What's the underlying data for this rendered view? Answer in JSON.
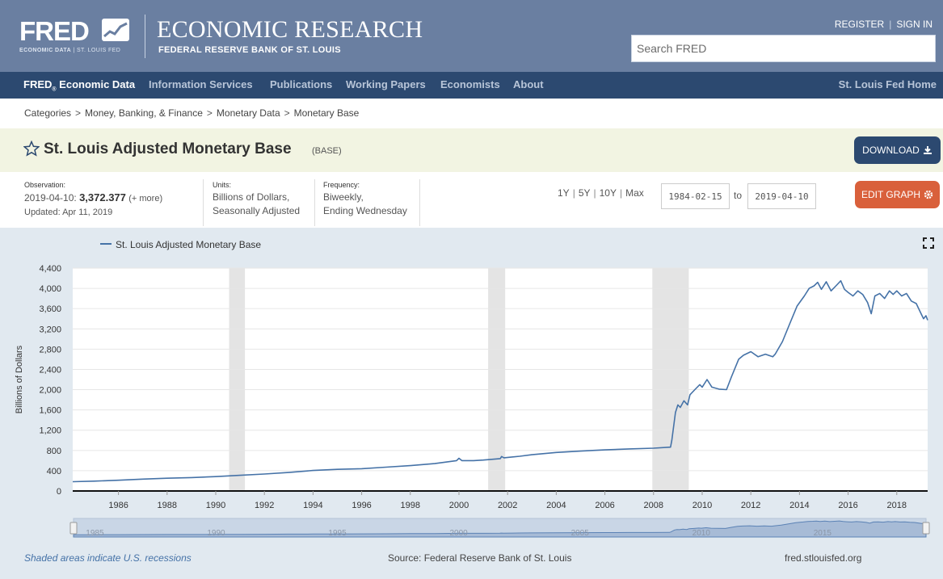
{
  "header": {
    "logo_text": "FRED",
    "logo_sub_bold": "ECONOMIC DATA",
    "logo_sub_sep": " | ",
    "logo_sub_rest": "ST. LOUIS FED",
    "title": "ECONOMIC RESEARCH",
    "subtitle": "FEDERAL RESERVE BANK OF ST. LOUIS",
    "register": "REGISTER",
    "sep": "|",
    "sign_in": "SIGN IN",
    "search_placeholder": "Search FRED"
  },
  "nav": {
    "fred_label": "FRED",
    "fred_sup": "®",
    "fred_rest": " Economic Data",
    "items": [
      "Information Services",
      "Publications",
      "Working Papers",
      "Economists",
      "About"
    ],
    "right": "St. Louis Fed Home"
  },
  "breadcrumb": {
    "items": [
      "Categories",
      "Money, Banking, & Finance",
      "Monetary Data",
      "Monetary Base"
    ],
    "sep": ">"
  },
  "series": {
    "title": "St. Louis Adjusted Monetary Base",
    "id": "(BASE)"
  },
  "buttons": {
    "download": "DOWNLOAD",
    "edit_graph": "EDIT GRAPH"
  },
  "meta": {
    "observation_label": "Observation:",
    "observation_date": "2019-04-10:",
    "observation_value": "3,372.377",
    "observation_more": "(+ more)",
    "updated": "Updated: Apr 11, 2019",
    "units_label": "Units:",
    "units_line1": "Billions of Dollars,",
    "units_line2": "Seasonally Adjusted",
    "frequency_label": "Frequency:",
    "frequency_line1": "Biweekly,",
    "frequency_line2": "Ending Wednesday"
  },
  "range": {
    "options": [
      "1Y",
      "5Y",
      "10Y",
      "Max"
    ],
    "sep": "|",
    "start": "1984-02-15",
    "to": "to",
    "end": "2019-04-10"
  },
  "footer": {
    "recessions": "Shaded areas indicate U.S. recessions",
    "source": "Source: Federal Reserve Bank of St. Louis",
    "url": "fred.stlouisfed.org"
  },
  "colors": {
    "header_bg": "#6a7fa1",
    "nav_bg": "#2c4970",
    "title_band": "#f2f4e2",
    "download_btn": "#2c4970",
    "edit_btn": "#d9603b",
    "series_line": "#4572a7",
    "chart_area_bg": "#e1e9f0",
    "recession_shade": "#e4e4e4"
  },
  "icons": {
    "star": "star-icon",
    "download": "download-icon",
    "gear": "gear-icon",
    "fullscreen": "fullscreen-icon",
    "logo_graph": "logo-graph-icon"
  },
  "chart_data": {
    "type": "line",
    "legend": "St. Louis Adjusted Monetary Base",
    "ylabel": "Billions of Dollars",
    "xlabel": "",
    "ylim": [
      0,
      4400
    ],
    "xlim": [
      1984.12,
      2019.27
    ],
    "y_ticks": [
      0,
      400,
      800,
      1200,
      1600,
      2000,
      2400,
      2800,
      3200,
      3600,
      4000,
      4400
    ],
    "y_tick_labels": [
      "0",
      "400",
      "800",
      "1,200",
      "1,600",
      "2,000",
      "2,400",
      "2,800",
      "3,200",
      "3,600",
      "4,000",
      "4,400"
    ],
    "x_ticks": [
      1986,
      1988,
      1990,
      1992,
      1994,
      1996,
      1998,
      2000,
      2002,
      2004,
      2006,
      2008,
      2010,
      2012,
      2014,
      2016,
      2018
    ],
    "navigator_ticks": [
      1985,
      1990,
      1995,
      2000,
      2005,
      2010,
      2015
    ],
    "grid": true,
    "legend_position": "top-left",
    "recessions": [
      [
        1990.55,
        1991.2
      ],
      [
        2001.2,
        2001.9
      ],
      [
        2007.95,
        2009.45
      ]
    ],
    "series": [
      {
        "name": "St. Louis Adjusted Monetary Base",
        "points": [
          [
            1984.12,
            183
          ],
          [
            1985,
            195
          ],
          [
            1986,
            212
          ],
          [
            1987,
            235
          ],
          [
            1988,
            252
          ],
          [
            1989,
            265
          ],
          [
            1990,
            283
          ],
          [
            1991,
            310
          ],
          [
            1992,
            335
          ],
          [
            1993,
            365
          ],
          [
            1994,
            405
          ],
          [
            1995,
            428
          ],
          [
            1996,
            440
          ],
          [
            1997,
            470
          ],
          [
            1998,
            500
          ],
          [
            1999,
            540
          ],
          [
            1999.9,
            600
          ],
          [
            2000.0,
            645
          ],
          [
            2000.12,
            600
          ],
          [
            2000.6,
            600
          ],
          [
            2001,
            610
          ],
          [
            2001.7,
            640
          ],
          [
            2001.75,
            680
          ],
          [
            2001.85,
            655
          ],
          [
            2002.5,
            685
          ],
          [
            2003,
            715
          ],
          [
            2004,
            760
          ],
          [
            2005,
            788
          ],
          [
            2006,
            812
          ],
          [
            2007,
            830
          ],
          [
            2008.0,
            845
          ],
          [
            2008.7,
            865
          ],
          [
            2008.75,
            1000
          ],
          [
            2008.9,
            1550
          ],
          [
            2009.0,
            1700
          ],
          [
            2009.1,
            1650
          ],
          [
            2009.25,
            1780
          ],
          [
            2009.4,
            1700
          ],
          [
            2009.5,
            1900
          ],
          [
            2009.7,
            2000
          ],
          [
            2009.9,
            2100
          ],
          [
            2010.0,
            2050
          ],
          [
            2010.2,
            2200
          ],
          [
            2010.4,
            2050
          ],
          [
            2010.7,
            2010
          ],
          [
            2011.0,
            2000
          ],
          [
            2011.2,
            2250
          ],
          [
            2011.5,
            2600
          ],
          [
            2011.7,
            2680
          ],
          [
            2012.0,
            2750
          ],
          [
            2012.3,
            2650
          ],
          [
            2012.6,
            2700
          ],
          [
            2012.9,
            2650
          ],
          [
            2013.0,
            2700
          ],
          [
            2013.3,
            2950
          ],
          [
            2013.6,
            3300
          ],
          [
            2013.9,
            3650
          ],
          [
            2014.2,
            3850
          ],
          [
            2014.4,
            4000
          ],
          [
            2014.6,
            4050
          ],
          [
            2014.75,
            4120
          ],
          [
            2014.9,
            3980
          ],
          [
            2015.1,
            4130
          ],
          [
            2015.3,
            3950
          ],
          [
            2015.5,
            4050
          ],
          [
            2015.7,
            4150
          ],
          [
            2015.85,
            3980
          ],
          [
            2016.0,
            3920
          ],
          [
            2016.2,
            3850
          ],
          [
            2016.4,
            3950
          ],
          [
            2016.6,
            3880
          ],
          [
            2016.8,
            3720
          ],
          [
            2016.95,
            3500
          ],
          [
            2017.1,
            3850
          ],
          [
            2017.3,
            3900
          ],
          [
            2017.5,
            3800
          ],
          [
            2017.7,
            3950
          ],
          [
            2017.85,
            3880
          ],
          [
            2018.0,
            3950
          ],
          [
            2018.2,
            3850
          ],
          [
            2018.4,
            3900
          ],
          [
            2018.6,
            3750
          ],
          [
            2018.8,
            3700
          ],
          [
            2019.0,
            3500
          ],
          [
            2019.1,
            3400
          ],
          [
            2019.2,
            3460
          ],
          [
            2019.27,
            3372
          ]
        ]
      }
    ]
  }
}
